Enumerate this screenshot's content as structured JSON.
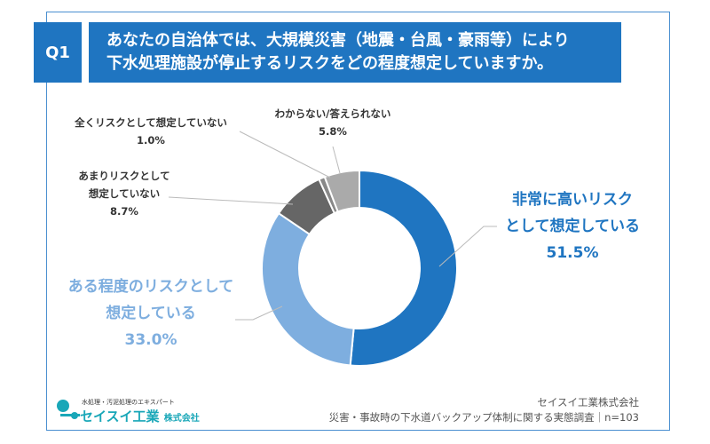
{
  "header": {
    "q_label": "Q1",
    "question_line1": "あなたの自治体では、大規模災害（地震・台風・豪雨等）により",
    "question_line2": "下水処理施設が停止するリスクをどの程度想定していますか。"
  },
  "chart_data": {
    "type": "pie",
    "donut": true,
    "start": "top",
    "direction": "clockwise",
    "slices": [
      {
        "label_line1": "非常に高いリスク",
        "label_line2": "として想定している",
        "value": 51.5,
        "value_label": "51.5%",
        "color": "#1f75c1"
      },
      {
        "label_line1": "ある程度のリスクとして",
        "label_line2": "想定している",
        "value": 33.0,
        "value_label": "33.0%",
        "color": "#7eaedf"
      },
      {
        "label_line1": "あまりリスクとして",
        "label_line2": "想定していない",
        "value": 8.7,
        "value_label": "8.7%",
        "color": "#666666"
      },
      {
        "label_line1": "全くリスクとして想定していない",
        "label_line2": "",
        "value": 1.0,
        "value_label": "1.0%",
        "color": "#888888"
      },
      {
        "label_line1": "わからない/答えられない",
        "label_line2": "",
        "value": 5.8,
        "value_label": "5.8%",
        "color": "#aaaaaa"
      }
    ]
  },
  "footer": {
    "company": "セイスイ工業株式会社",
    "survey": "災害・事故時の下水道バックアップ体制に関する実態調査｜n=103",
    "logo_tagline": "水処理・汚泥処理のエキスパート",
    "logo_name": "セイスイ工業",
    "logo_suffix": "株式会社"
  },
  "colors": {
    "accent": "#1f75c1",
    "light": "#7eaedf",
    "logo": "#19a7b8"
  }
}
